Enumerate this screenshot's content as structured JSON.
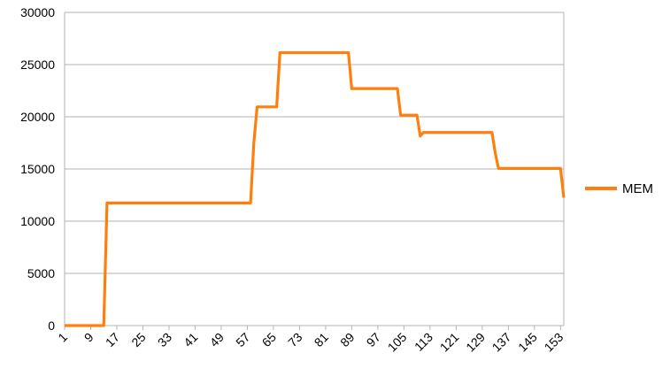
{
  "chart_data": {
    "type": "line",
    "title": "",
    "xlabel": "",
    "ylabel": "",
    "ylim": [
      0,
      30000
    ],
    "y_ticks": [
      0,
      5000,
      10000,
      15000,
      20000,
      25000,
      30000
    ],
    "y_tick_labels": [
      "0",
      "5000",
      "10000",
      "15000",
      "20000",
      "25000",
      "30000"
    ],
    "x_range": [
      1,
      154
    ],
    "x_ticks": [
      1,
      9,
      17,
      25,
      33,
      41,
      49,
      57,
      65,
      73,
      81,
      89,
      97,
      105,
      113,
      121,
      129,
      137,
      145,
      153
    ],
    "x_tick_labels": [
      "1",
      "9",
      "17",
      "25",
      "33",
      "41",
      "49",
      "57",
      "65",
      "73",
      "81",
      "89",
      "97",
      "105",
      "113",
      "121",
      "129",
      "137",
      "145",
      "153"
    ],
    "grid": "horizontal",
    "legend": "right",
    "series": [
      {
        "name": "MEM",
        "color": "#ff7f0e",
        "points": [
          [
            1,
            0
          ],
          [
            13,
            0
          ],
          [
            14,
            11750
          ],
          [
            58,
            11750
          ],
          [
            59,
            17500
          ],
          [
            60,
            20950
          ],
          [
            66,
            20950
          ],
          [
            67,
            26150
          ],
          [
            88,
            26150
          ],
          [
            89,
            22700
          ],
          [
            103,
            22700
          ],
          [
            104,
            20150
          ],
          [
            109,
            20150
          ],
          [
            110,
            18150
          ],
          [
            111,
            18500
          ],
          [
            132,
            18500
          ],
          [
            133,
            16500
          ],
          [
            134,
            15050
          ],
          [
            153,
            15050
          ],
          [
            154,
            12250
          ]
        ]
      }
    ]
  }
}
